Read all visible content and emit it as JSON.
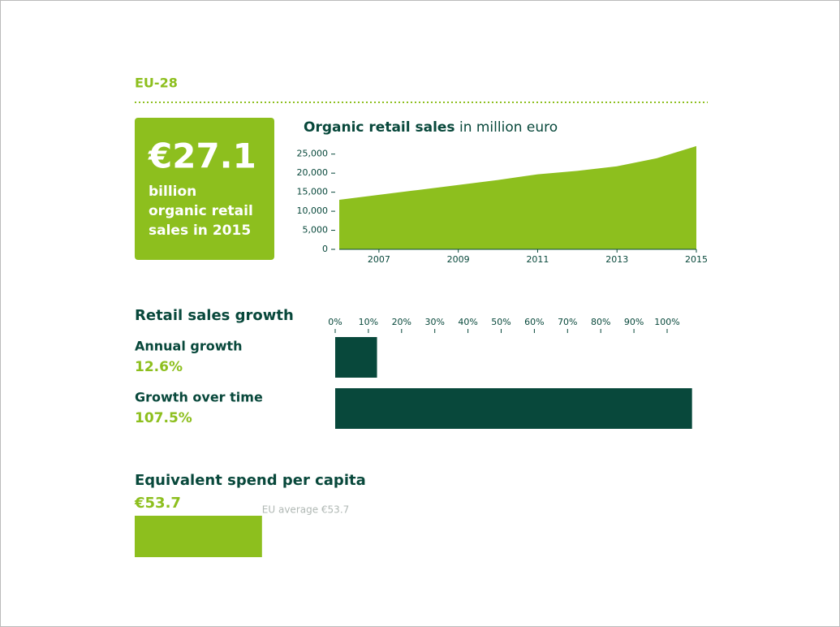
{
  "header": {
    "title": "EU-28"
  },
  "highlight": {
    "value": "€27.1",
    "lines": [
      "billion",
      "organic retail",
      "sales in 2015"
    ]
  },
  "chart_data": [
    {
      "type": "area",
      "title": "Organic retail sales",
      "unit": "in million euro",
      "x": [
        2006,
        2007,
        2008,
        2009,
        2010,
        2011,
        2012,
        2013,
        2014,
        2015
      ],
      "values": [
        13000,
        14300,
        15600,
        16900,
        18200,
        19700,
        20600,
        21800,
        23900,
        27100
      ],
      "color": "#8dbf1e",
      "xlim": [
        2006,
        2015
      ],
      "xticks": [
        2007,
        2009,
        2011,
        2013,
        2015
      ],
      "ylim": [
        0,
        27500
      ],
      "yticks": [
        0,
        {
          "value": 5000,
          "label": "5,000"
        },
        {
          "value": 10000,
          "label": "10,000"
        },
        {
          "value": 15000,
          "label": "15,000"
        },
        {
          "value": 20000,
          "label": "20,000"
        },
        {
          "value": 25000,
          "label": "25,000"
        }
      ]
    },
    {
      "type": "hbar",
      "title": "Retail sales growth",
      "categories": [
        "Annual growth",
        "Growth over time"
      ],
      "values": [
        12.6,
        107.5
      ],
      "value_labels": [
        "12.6%",
        "107.5%"
      ],
      "color": "#08483b",
      "label_color": "#8dbf1e",
      "xlim": [
        0,
        110
      ],
      "xticks": [
        {
          "value": 0,
          "label": "0%"
        },
        {
          "value": 10,
          "label": "10%"
        },
        {
          "value": 20,
          "label": "20%"
        },
        {
          "value": 30,
          "label": "30%"
        },
        {
          "value": 40,
          "label": "40%"
        },
        {
          "value": 50,
          "label": "50%"
        },
        {
          "value": 60,
          "label": "60%"
        },
        {
          "value": 70,
          "label": "70%"
        },
        {
          "value": 80,
          "label": "80%"
        },
        {
          "value": 90,
          "label": "90%"
        },
        {
          "value": 100,
          "label": "100%"
        }
      ]
    },
    {
      "type": "spend",
      "title": "Equivalent spend per capita",
      "values": [
        53.7
      ],
      "value_labels": [
        "€53.7"
      ],
      "annotation": "EU average €53.7",
      "color": "#8dbf1e",
      "xlim": [
        0,
        100
      ]
    }
  ]
}
